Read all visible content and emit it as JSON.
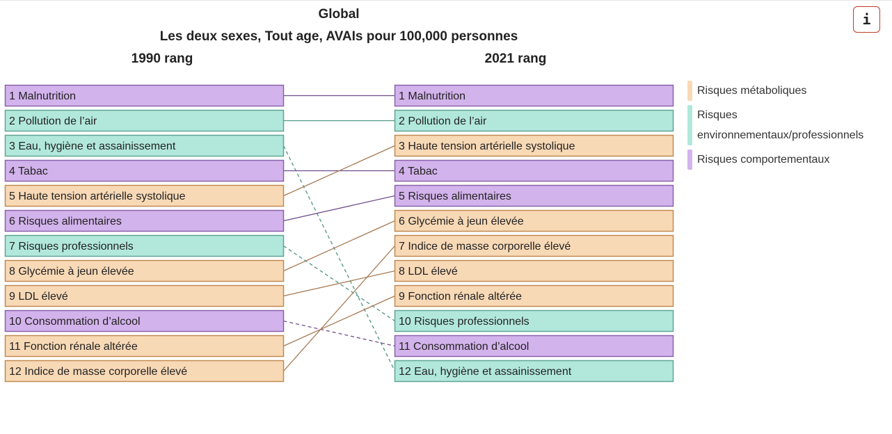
{
  "header": {
    "title": "Global",
    "subtitle": "Les deux sexes, Tout age, AVAIs pour 100,000 personnes",
    "left_column": "1990 rang",
    "right_column": "2021 rang"
  },
  "info_button": {
    "label": "i"
  },
  "colors": {
    "metabolic": "#f8d9b6",
    "metabolic_border": "#c08a52",
    "metabolic_line": "#a67a54",
    "environmental": "#b2e8dc",
    "environmental_border": "#5fa594",
    "environmental_line": "#4e9482",
    "behavioral": "#d3b3ec",
    "behavioral_border": "#8a62aa",
    "behavioral_line": "#6e4d8c"
  },
  "legend": [
    {
      "label": "Risques métaboliques",
      "category": "metabolic",
      "color": "#f8d9b6"
    },
    {
      "label": "Risques environnementaux/professionnels",
      "category": "environmental",
      "color": "#b2e8dc"
    },
    {
      "label": "Risques comportementaux",
      "category": "behavioral",
      "color": "#d3b3ec"
    }
  ],
  "chart_data": {
    "type": "table",
    "left_label": "1990 rang",
    "right_label": "2021 rang",
    "rank_1990": [
      {
        "rank": 1,
        "label": "1 Malnutrition",
        "category": "behavioral",
        "rank_2021": 1
      },
      {
        "rank": 2,
        "label": "2 Pollution de l’air",
        "category": "environmental",
        "rank_2021": 2
      },
      {
        "rank": 3,
        "label": "3 Eau, hygiène et assainissement",
        "category": "environmental",
        "rank_2021": 12
      },
      {
        "rank": 4,
        "label": "4 Tabac",
        "category": "behavioral",
        "rank_2021": 4
      },
      {
        "rank": 5,
        "label": "5 Haute tension artérielle systolique",
        "category": "metabolic",
        "rank_2021": 3
      },
      {
        "rank": 6,
        "label": "6 Risques alimentaires",
        "category": "behavioral",
        "rank_2021": 5
      },
      {
        "rank": 7,
        "label": "7 Risques professionnels",
        "category": "environmental",
        "rank_2021": 10
      },
      {
        "rank": 8,
        "label": "8 Glycémie à jeun élevée",
        "category": "metabolic",
        "rank_2021": 6
      },
      {
        "rank": 9,
        "label": "9 LDL élevé",
        "category": "metabolic",
        "rank_2021": 8
      },
      {
        "rank": 10,
        "label": "10 Consommation d’alcool",
        "category": "behavioral",
        "rank_2021": 11
      },
      {
        "rank": 11,
        "label": "11 Fonction rénale altérée",
        "category": "metabolic",
        "rank_2021": 9
      },
      {
        "rank": 12,
        "label": "12 Indice de masse corporelle élevé",
        "category": "metabolic",
        "rank_2021": 7
      }
    ],
    "rank_2021": [
      {
        "rank": 1,
        "label": "1 Malnutrition",
        "category": "behavioral"
      },
      {
        "rank": 2,
        "label": "2 Pollution de l’air",
        "category": "environmental"
      },
      {
        "rank": 3,
        "label": "3 Haute tension artérielle systolique",
        "category": "metabolic"
      },
      {
        "rank": 4,
        "label": "4 Tabac",
        "category": "behavioral"
      },
      {
        "rank": 5,
        "label": "5 Risques alimentaires",
        "category": "behavioral"
      },
      {
        "rank": 6,
        "label": "6 Glycémie à jeun élevée",
        "category": "metabolic"
      },
      {
        "rank": 7,
        "label": "7 Indice de masse corporelle élevé",
        "category": "metabolic"
      },
      {
        "rank": 8,
        "label": "8 LDL élevé",
        "category": "metabolic"
      },
      {
        "rank": 9,
        "label": "9 Fonction rénale altérée",
        "category": "metabolic"
      },
      {
        "rank": 10,
        "label": "10 Risques professionnels",
        "category": "environmental"
      },
      {
        "rank": 11,
        "label": "11 Consommation d’alcool",
        "category": "behavioral"
      },
      {
        "rank": 12,
        "label": "12 Eau, hygiène et assainissement",
        "category": "environmental"
      }
    ]
  }
}
